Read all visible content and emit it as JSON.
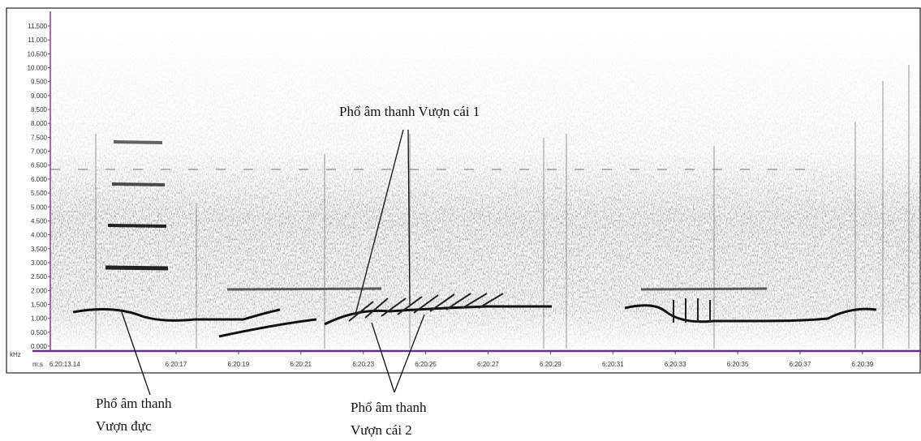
{
  "spectrogram": {
    "y_unit": "kHz",
    "y_labels": [
      "11.500",
      "11.000",
      "10.500",
      "10.000",
      "9.500",
      "9.000",
      "8.500",
      "8.000",
      "7.500",
      "7.000",
      "6.500",
      "6.000",
      "5.500",
      "5.000",
      "4.500",
      "4.000",
      "3.500",
      "3.000",
      "2.500",
      "2.000",
      "1.500",
      "1.000",
      "0.500",
      "0.000"
    ],
    "x_prefix": "m:s",
    "x_labels": [
      "6:20:13.14",
      "6:20:17",
      "6:20:19",
      "6:20:21",
      "6:20:23",
      "6:20:25",
      "6:20:27",
      "6:20:29",
      "6:20:31",
      "6:20:33",
      "6:20:35",
      "6:20:37",
      "6:20:39"
    ]
  },
  "annotations": {
    "female_1": "Phổ âm thanh Vượn cái 1",
    "male": [
      "Phổ âm thanh",
      "Vượn đực"
    ],
    "female_2": [
      "Phổ âm thanh",
      "Vượn cái 2"
    ]
  }
}
